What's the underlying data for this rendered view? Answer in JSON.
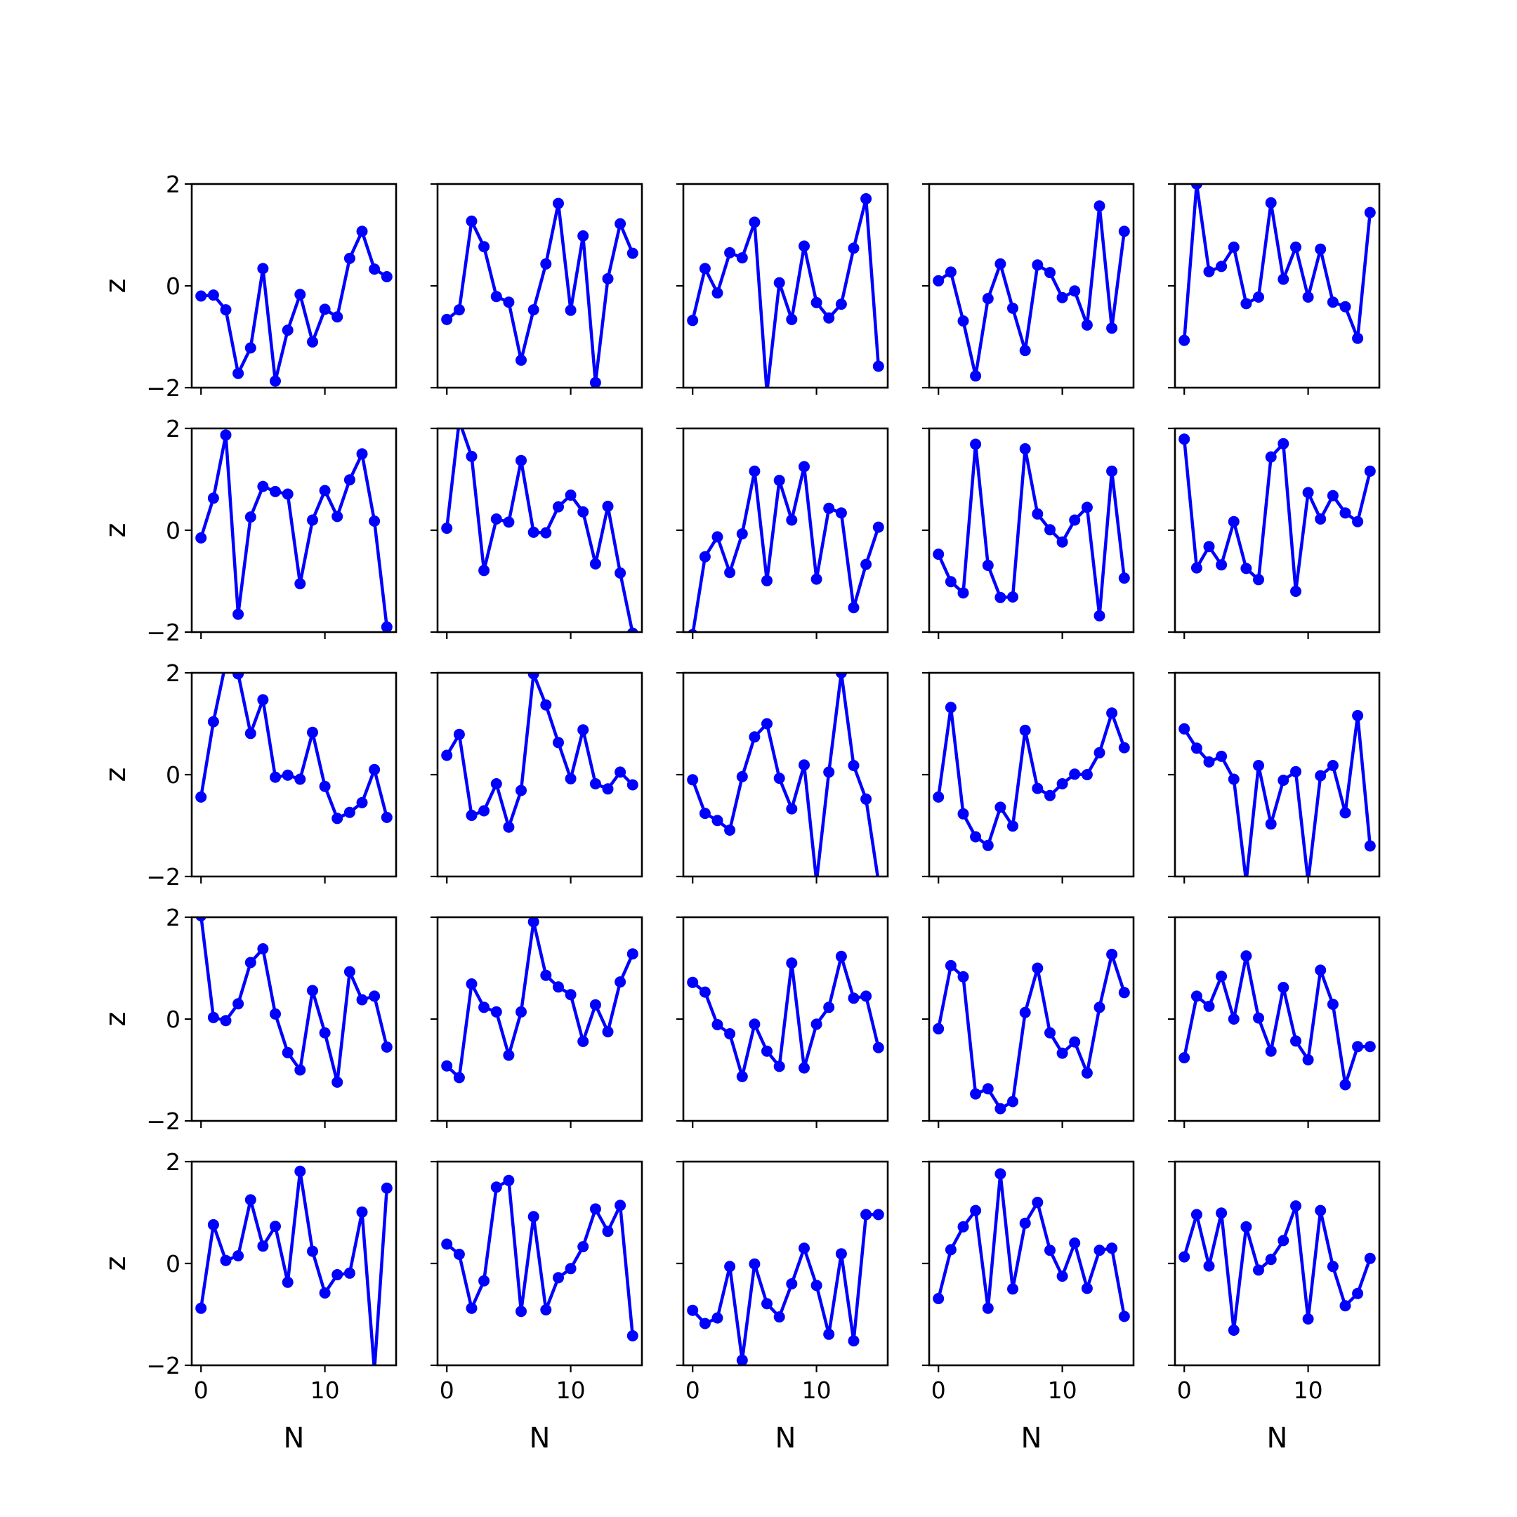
{
  "chart_data": {
    "type": "line",
    "layout": "5x5 grid of small-multiple line plots",
    "xlabel": "N",
    "ylabel": "z",
    "xlim": [
      -0.75,
      15.75
    ],
    "ylim": [
      -2,
      2
    ],
    "xticks": [
      0,
      10
    ],
    "yticks": [
      -2,
      0,
      2
    ],
    "ytick_labels": [
      "−2",
      "0",
      "2"
    ],
    "xtick_labels": [
      "0",
      "10"
    ],
    "x": [
      0,
      1,
      2,
      3,
      4,
      5,
      6,
      7,
      8,
      9,
      10,
      11,
      12,
      13,
      14,
      15
    ],
    "line_color": "#0000ff",
    "marker": "circle",
    "panels": [
      [
        [
          -0.2,
          -0.18,
          -0.47,
          -1.72,
          -1.22,
          0.34,
          -1.87,
          -0.87,
          -0.17,
          -1.1,
          -0.46,
          -0.61,
          0.54,
          1.07,
          0.33,
          0.18
        ],
        [
          -0.66,
          -0.47,
          1.27,
          0.77,
          -0.21,
          -0.32,
          -1.46,
          -0.47,
          0.43,
          1.62,
          -0.48,
          0.98,
          -1.9,
          0.14,
          1.22,
          0.64
        ],
        [
          -0.68,
          0.34,
          -0.14,
          0.65,
          0.55,
          1.25,
          -2.1,
          0.06,
          -0.66,
          0.78,
          -0.33,
          -0.63,
          -0.36,
          0.74,
          1.71,
          -1.58
        ],
        [
          0.1,
          0.27,
          -0.69,
          -1.77,
          -0.25,
          0.43,
          -0.44,
          -1.27,
          0.41,
          0.26,
          -0.23,
          -0.1,
          -0.77,
          1.57,
          -0.83,
          1.07
        ],
        [
          -1.07,
          2.0,
          0.28,
          0.38,
          0.76,
          -0.35,
          -0.22,
          1.63,
          0.13,
          0.76,
          -0.22,
          0.72,
          -0.32,
          -0.41,
          -1.03,
          1.44
        ]
      ],
      [
        [
          -0.15,
          0.63,
          1.87,
          -1.65,
          0.26,
          0.86,
          0.76,
          0.71,
          -1.05,
          0.2,
          0.78,
          0.27,
          0.99,
          1.5,
          0.18,
          -1.9
        ],
        [
          0.04,
          2.15,
          1.45,
          -0.79,
          0.22,
          0.16,
          1.37,
          -0.04,
          -0.05,
          0.46,
          0.69,
          0.36,
          -0.66,
          0.47,
          -0.84,
          -2.02
        ],
        [
          -2.05,
          -0.52,
          -0.13,
          -0.83,
          -0.07,
          1.16,
          -0.99,
          0.98,
          0.2,
          1.25,
          -0.96,
          0.43,
          0.34,
          -1.52,
          -0.67,
          0.06
        ],
        [
          -0.47,
          -1.01,
          -1.23,
          1.69,
          -0.69,
          -1.32,
          -1.31,
          1.6,
          0.32,
          0.01,
          -0.23,
          0.2,
          0.45,
          -1.68,
          1.16,
          -0.94
        ],
        [
          1.79,
          -0.74,
          -0.32,
          -0.68,
          0.17,
          -0.75,
          -0.97,
          1.44,
          1.7,
          -1.2,
          0.74,
          0.22,
          0.68,
          0.34,
          0.17,
          1.16
        ]
      ],
      [
        [
          -0.44,
          1.04,
          2.2,
          1.98,
          0.81,
          1.47,
          -0.05,
          -0.01,
          -0.09,
          0.83,
          -0.23,
          -0.86,
          -0.74,
          -0.55,
          0.1,
          -0.84
        ],
        [
          0.38,
          0.79,
          -0.8,
          -0.71,
          -0.18,
          -1.03,
          -0.31,
          1.98,
          1.37,
          0.63,
          -0.08,
          0.88,
          -0.18,
          -0.28,
          0.05,
          -0.2
        ],
        [
          -0.1,
          -0.76,
          -0.9,
          -1.09,
          -0.04,
          0.74,
          1.0,
          -0.07,
          -0.67,
          0.19,
          -2.1,
          0.05,
          2.0,
          0.18,
          -0.48,
          -2.1
        ],
        [
          -0.44,
          1.32,
          -0.77,
          -1.22,
          -1.39,
          -0.64,
          -1.01,
          0.87,
          -0.27,
          -0.41,
          -0.18,
          0.01,
          0.0,
          0.43,
          1.21,
          0.53
        ],
        [
          0.9,
          0.52,
          0.25,
          0.36,
          -0.09,
          -2.1,
          0.18,
          -0.97,
          -0.11,
          0.06,
          -2.1,
          -0.02,
          0.18,
          -0.75,
          1.16,
          -1.4
        ]
      ],
      [
        [
          2.03,
          0.03,
          -0.03,
          0.3,
          1.11,
          1.38,
          0.1,
          -0.66,
          -1.0,
          0.56,
          -0.27,
          -1.24,
          0.93,
          0.38,
          0.45,
          -0.55
        ],
        [
          -0.92,
          -1.15,
          0.69,
          0.23,
          0.14,
          -0.71,
          0.14,
          1.91,
          0.86,
          0.63,
          0.48,
          -0.44,
          0.28,
          -0.25,
          0.73,
          1.28
        ],
        [
          0.72,
          0.53,
          -0.11,
          -0.29,
          -1.13,
          -0.1,
          -0.63,
          -0.93,
          1.1,
          -0.96,
          -0.1,
          0.23,
          1.23,
          0.41,
          0.45,
          -0.56
        ],
        [
          -0.19,
          1.05,
          0.83,
          -1.47,
          -1.37,
          -1.76,
          -1.62,
          0.13,
          1.0,
          -0.27,
          -0.67,
          -0.45,
          -1.06,
          0.23,
          1.27,
          0.52
        ],
        [
          -0.76,
          0.45,
          0.25,
          0.84,
          0.0,
          1.24,
          0.02,
          -0.63,
          0.62,
          -0.43,
          -0.8,
          0.96,
          0.29,
          -1.29,
          -0.54,
          -0.54
        ]
      ],
      [
        [
          -0.88,
          0.76,
          0.06,
          0.15,
          1.25,
          0.34,
          0.73,
          -0.37,
          1.81,
          0.24,
          -0.58,
          -0.22,
          -0.19,
          1.01,
          -2.1,
          1.48
        ],
        [
          0.38,
          0.18,
          -0.88,
          -0.34,
          1.5,
          1.63,
          -0.94,
          0.92,
          -0.91,
          -0.28,
          -0.1,
          0.33,
          1.07,
          0.63,
          1.14,
          -1.42
        ],
        [
          -0.92,
          -1.18,
          -1.07,
          -0.06,
          -1.9,
          -0.01,
          -0.79,
          -1.05,
          -0.4,
          0.3,
          -0.43,
          -1.39,
          0.19,
          -1.52,
          0.96,
          0.96
        ],
        [
          -0.69,
          0.27,
          0.72,
          1.04,
          -0.88,
          1.76,
          -0.5,
          0.79,
          1.2,
          0.26,
          -0.25,
          0.4,
          -0.49,
          0.26,
          0.3,
          -1.04
        ],
        [
          0.13,
          0.96,
          -0.05,
          0.99,
          -1.31,
          0.72,
          -0.13,
          0.08,
          0.45,
          1.13,
          -1.09,
          1.04,
          -0.06,
          -0.83,
          -0.59,
          0.1
        ]
      ]
    ]
  }
}
